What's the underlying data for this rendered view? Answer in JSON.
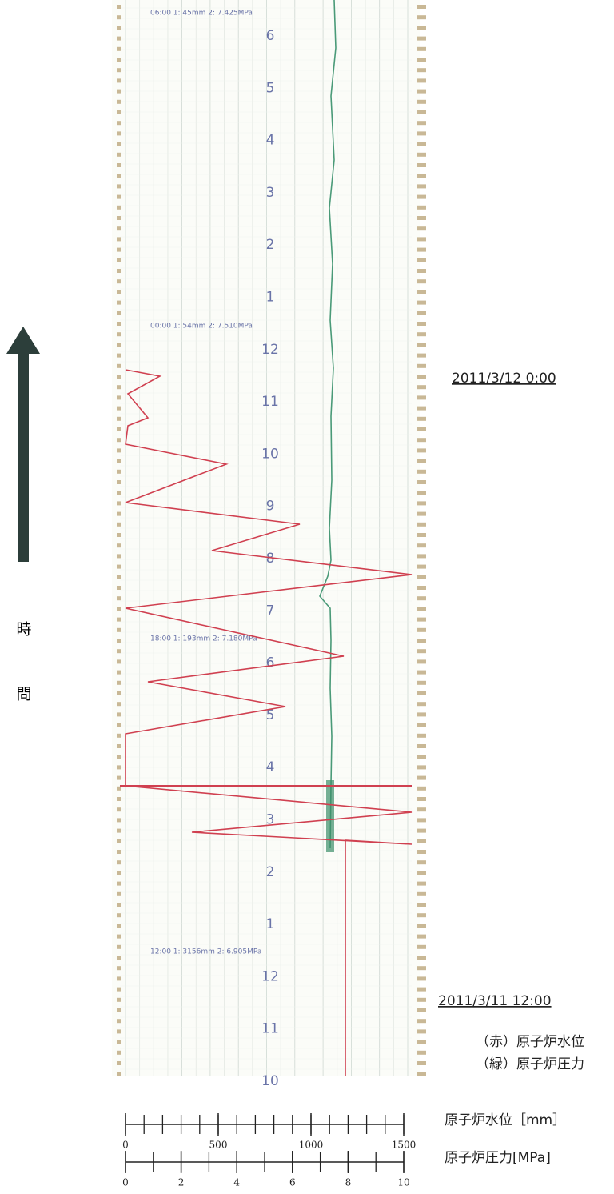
{
  "time_label": [
    "時",
    "問"
  ],
  "timestamps": [
    "2011/3/12 0:00",
    "2011/3/11 12:00"
  ],
  "legend": [
    "（赤）原子炉水位",
    "（緑）原子炉圧力"
  ],
  "hour_labels": [
    6,
    5,
    4,
    3,
    2,
    1,
    12,
    11,
    10,
    9,
    8,
    7,
    6,
    5,
    4,
    3,
    2,
    1,
    12,
    11,
    10
  ],
  "strip_headers": [
    "06:00 1: 45mm 2: 7.425MPa",
    "00:00 1: 54mm 2: 7.510MPa",
    "18:00 1: 193mm 2: 7.180MPa",
    "12:00 1: 3156mm 2: 6.905MPa"
  ],
  "scales": [
    {
      "title": "原子炉水位［mm］",
      "range": [
        0,
        1500
      ],
      "ticks": [
        0,
        500,
        1000,
        1500
      ]
    },
    {
      "title": "原子炉圧力[MPa]",
      "range": [
        0,
        10
      ],
      "ticks": [
        0,
        2,
        4,
        6,
        8,
        10
      ]
    }
  ]
}
